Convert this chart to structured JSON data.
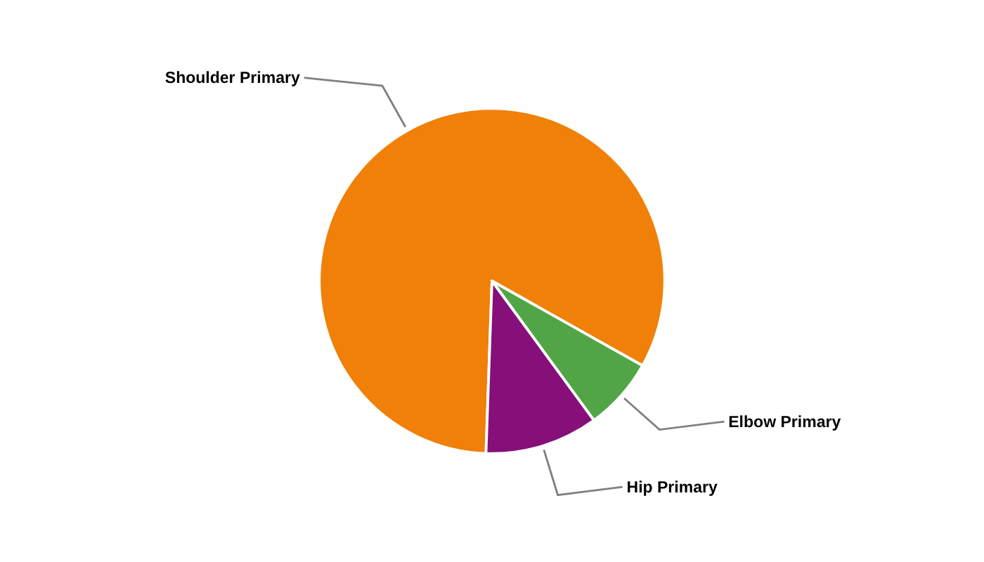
{
  "chart_data": {
    "type": "pie",
    "categories": [
      "Shoulder Primary",
      "Elbow Primary",
      "Hip Primary"
    ],
    "values": [
      82.6,
      6.8,
      10.6
    ],
    "colors": [
      "#f08008",
      "#52a546",
      "#860f7a"
    ]
  }
}
